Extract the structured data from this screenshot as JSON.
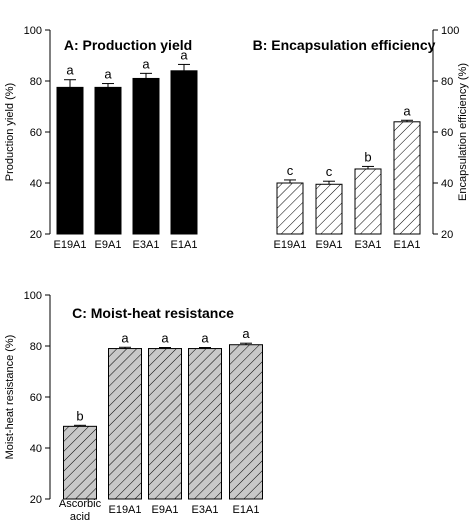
{
  "colors": {
    "black": "#000000",
    "gray": "#c8c8c8",
    "white": "#ffffff"
  },
  "chart_data": [
    {
      "id": "A",
      "type": "bar",
      "title": "A: Production yield",
      "ylabel": "Production yield (%)",
      "categories": [
        "E19A1",
        "E9A1",
        "E3A1",
        "E1A1"
      ],
      "values": [
        77.5,
        77.5,
        81,
        84
      ],
      "errors": [
        3,
        1.5,
        2,
        2.5
      ],
      "letters": [
        "a",
        "a",
        "a",
        "a"
      ],
      "ylim": [
        20,
        100
      ],
      "yticks": [
        20,
        40,
        60,
        80,
        100
      ],
      "axis_side": "left",
      "fill": "solid-black"
    },
    {
      "id": "B",
      "type": "bar",
      "title": "B: Encapsulation efficiency",
      "ylabel": "Encapsulation efficiency (%)",
      "categories": [
        "E19A1",
        "E9A1",
        "E3A1",
        "E1A1"
      ],
      "values": [
        40,
        39.5,
        45.5,
        64
      ],
      "errors": [
        1.2,
        1.2,
        1,
        0.6
      ],
      "letters": [
        "c",
        "c",
        "b",
        "a"
      ],
      "ylim": [
        20,
        100
      ],
      "yticks": [
        20,
        40,
        60,
        80,
        100
      ],
      "axis_side": "right",
      "fill": "white-hatched"
    },
    {
      "id": "C",
      "type": "bar",
      "title": "C: Moist-heat resistance",
      "ylabel": "Moist-heat resistance (%)",
      "categories": [
        "Ascorbic acid",
        "E19A1",
        "E9A1",
        "E3A1",
        "E1A1"
      ],
      "values": [
        48.5,
        79,
        79,
        79,
        80.5
      ],
      "errors": [
        0.4,
        0.5,
        0.4,
        0.4,
        0.6
      ],
      "letters": [
        "b",
        "a",
        "a",
        "a",
        "a"
      ],
      "ylim": [
        20,
        100
      ],
      "yticks": [
        20,
        40,
        60,
        80,
        100
      ],
      "axis_side": "left",
      "fill": "gray-hatched"
    }
  ]
}
